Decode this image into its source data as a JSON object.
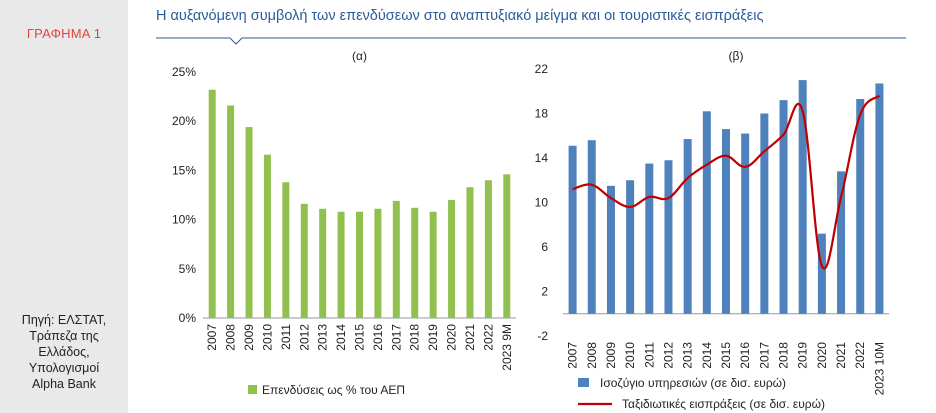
{
  "sidebar": {
    "label": "ΓΡΑΦΗΜΑ 1",
    "source_lines": [
      "Πηγή: ΕΛΣΤΑΤ,",
      "Τράπεζα της",
      "Ελλάδος,",
      "Υπολογισμοί",
      "Alpha Bank"
    ]
  },
  "title": "Η αυξανόμενη συμβολή των επενδύσεων στο αναπτυξιακό μείγμα και οι τουριστικές εισπράξεις",
  "colors": {
    "bar_green": "#92c04f",
    "bar_blue": "#4f81bd",
    "line_red": "#c00000",
    "title_blue": "#2b5b9a",
    "graph_label": "#e8433a"
  },
  "chart_data": [
    {
      "type": "bar",
      "subtitle": "(α)",
      "categories": [
        "2007",
        "2008",
        "2009",
        "2010",
        "2011",
        "2012",
        "2013",
        "2014",
        "2015",
        "2016",
        "2017",
        "2018",
        "2019",
        "2020",
        "2021",
        "2022",
        "2023 9M"
      ],
      "series": [
        {
          "name": "Επενδύσεις ως % του ΑΕΠ",
          "values": [
            23.2,
            21.6,
            19.4,
            16.6,
            13.8,
            11.6,
            11.1,
            10.8,
            10.8,
            11.1,
            11.9,
            11.2,
            10.8,
            12.0,
            13.3,
            14.0,
            14.6
          ]
        }
      ],
      "yticks": [
        "0%",
        "5%",
        "10%",
        "15%",
        "20%",
        "25%"
      ],
      "ylim": [
        0,
        25
      ],
      "legend": "bottom"
    },
    {
      "type": "bar+line",
      "subtitle": "(β)",
      "categories": [
        "2007",
        "2008",
        "2009",
        "2010",
        "2011",
        "2012",
        "2013",
        "2014",
        "2015",
        "2016",
        "2017",
        "2018",
        "2019",
        "2020",
        "2021",
        "2022",
        "2023 10M"
      ],
      "series": [
        {
          "name": "Ισοζύγιο υπηρεσιών (σε δισ. ευρώ)",
          "type": "bar",
          "values": [
            15.1,
            15.6,
            11.5,
            12.0,
            13.5,
            13.8,
            15.7,
            18.2,
            16.6,
            16.2,
            18.0,
            19.2,
            21.0,
            7.2,
            12.8,
            19.3,
            20.7
          ]
        },
        {
          "name": "Ταξιδιωτικές εισπράξεις (σε δισ. ευρώ)",
          "type": "line",
          "values": [
            11.2,
            11.6,
            10.4,
            9.6,
            10.5,
            10.4,
            12.2,
            13.4,
            14.2,
            13.2,
            14.6,
            16.1,
            18.2,
            4.3,
            10.5,
            17.9,
            19.6
          ]
        }
      ],
      "yticks": [
        "-2",
        "2",
        "6",
        "10",
        "14",
        "18",
        "22"
      ],
      "ylim": [
        -2,
        22
      ],
      "legend": "bottom"
    }
  ]
}
